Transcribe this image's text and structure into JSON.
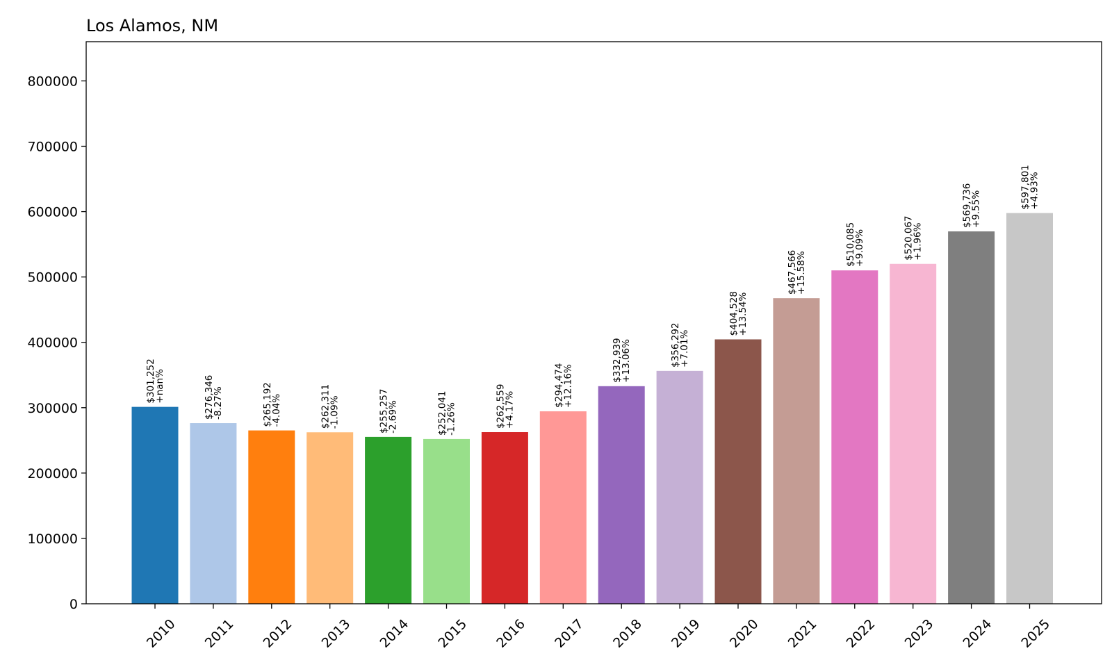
{
  "chart_data": {
    "type": "bar",
    "title": "Los Alamos, NM",
    "xlabel": "",
    "ylabel": "",
    "ylim": [
      0,
      860000
    ],
    "yticks": [
      0,
      100000,
      200000,
      300000,
      400000,
      500000,
      600000,
      700000,
      800000
    ],
    "ytick_labels": [
      "0",
      "100000",
      "200000",
      "300000",
      "400000",
      "500000",
      "600000",
      "700000",
      "800000"
    ],
    "grid": false,
    "legend": "none",
    "categories": [
      "2010",
      "2011",
      "2012",
      "2013",
      "2014",
      "2015",
      "2016",
      "2017",
      "2018",
      "2019",
      "2020",
      "2021",
      "2022",
      "2023",
      "2024",
      "2025"
    ],
    "values": [
      301252,
      276346,
      265192,
      262311,
      255257,
      252041,
      262559,
      294474,
      332939,
      356292,
      404528,
      467566,
      510085,
      520067,
      569736,
      597801
    ],
    "value_labels": [
      "$301,252",
      "$276,346",
      "$265,192",
      "$262,311",
      "$255,257",
      "$252,041",
      "$262,559",
      "$294,474",
      "$332,939",
      "$356,292",
      "$404,528",
      "$467,566",
      "$510,085",
      "$520,067",
      "$569,736",
      "$597,801"
    ],
    "change_labels": [
      "+nan%",
      "-8.27%",
      "-4.04%",
      "-1.09%",
      "-2.69%",
      "-1.26%",
      "+4.17%",
      "+12.16%",
      "+13.06%",
      "+7.01%",
      "+13.54%",
      "+15.58%",
      "+9.09%",
      "+1.96%",
      "+9.55%",
      "+4.93%"
    ],
    "colors": [
      "#1f77b4",
      "#aec7e8",
      "#ff7f0e",
      "#ffbb78",
      "#2ca02c",
      "#98df8a",
      "#d62728",
      "#ff9896",
      "#9467bd",
      "#c5b0d5",
      "#8c564b",
      "#c49c94",
      "#e377c2",
      "#f7b6d2",
      "#7f7f7f",
      "#c7c7c7"
    ]
  }
}
